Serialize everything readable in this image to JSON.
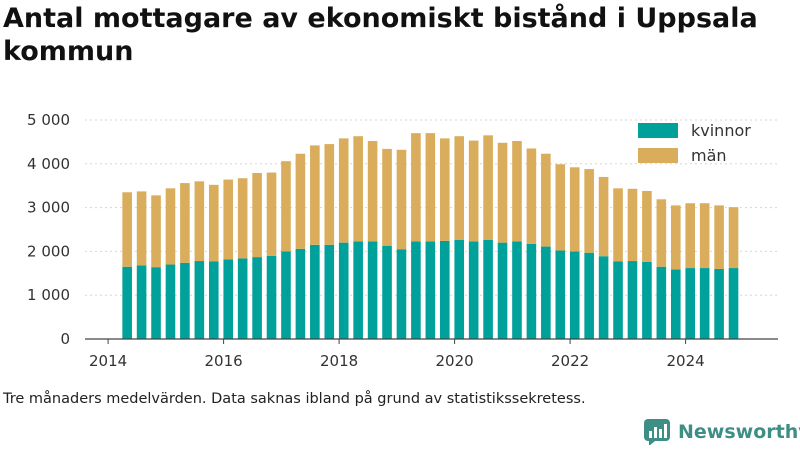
{
  "chart_data": {
    "type": "bar",
    "stacked": true,
    "title": "Antal mottagare av ekonomiskt bistånd i Uppsala kommun",
    "xlabel": "",
    "ylabel": "",
    "ylim": [
      0,
      5000
    ],
    "xlim": [
      2013.6,
      2025.6
    ],
    "y_ticks": [
      0,
      1000,
      2000,
      3000,
      4000,
      5000
    ],
    "y_tick_labels": [
      "0",
      "1 000",
      "2 000",
      "3 000",
      "4 000",
      "5 000"
    ],
    "x_ticks": [
      2014,
      2016,
      2018,
      2020,
      2022,
      2024
    ],
    "x_tick_labels": [
      "2014",
      "2016",
      "2018",
      "2020",
      "2022",
      "2024"
    ],
    "grid": "horizontal",
    "legend_position": "top-right",
    "x": [
      2014.33,
      2014.58,
      2014.83,
      2015.08,
      2015.33,
      2015.58,
      2015.83,
      2016.08,
      2016.33,
      2016.58,
      2016.83,
      2017.08,
      2017.33,
      2017.58,
      2017.83,
      2018.08,
      2018.33,
      2018.58,
      2018.83,
      2019.08,
      2019.33,
      2019.58,
      2019.83,
      2020.08,
      2020.33,
      2020.58,
      2020.83,
      2021.08,
      2021.33,
      2021.58,
      2021.83,
      2022.08,
      2022.33,
      2022.58,
      2022.83,
      2023.08,
      2023.33,
      2023.58,
      2023.83,
      2024.08,
      2024.33,
      2024.58,
      2024.83
    ],
    "series": [
      {
        "name": "kvinnor",
        "color": "#00a19a",
        "values": [
          1650,
          1680,
          1640,
          1700,
          1740,
          1780,
          1770,
          1820,
          1840,
          1870,
          1900,
          2000,
          2060,
          2150,
          2150,
          2200,
          2230,
          2230,
          2130,
          2050,
          2230,
          2230,
          2240,
          2260,
          2230,
          2260,
          2200,
          2230,
          2170,
          2110,
          2020,
          2000,
          1970,
          1890,
          1770,
          1780,
          1760,
          1650,
          1590,
          1620,
          1620,
          1600,
          1620
        ]
      },
      {
        "name": "män",
        "color": "#d9ad5b",
        "values": [
          1700,
          1690,
          1640,
          1740,
          1820,
          1820,
          1750,
          1820,
          1830,
          1920,
          1900,
          2060,
          2170,
          2270,
          2300,
          2380,
          2400,
          2290,
          2210,
          2270,
          2470,
          2470,
          2340,
          2370,
          2300,
          2390,
          2280,
          2290,
          2180,
          2120,
          1970,
          1920,
          1910,
          1810,
          1670,
          1650,
          1620,
          1540,
          1460,
          1480,
          1480,
          1450,
          1390
        ]
      }
    ]
  },
  "footnote": "Tre månaders medelvärden. Data saknas ibland på grund av statistikssekretess.",
  "brand": {
    "name": "Newsworthy",
    "color": "#3d8f86"
  }
}
